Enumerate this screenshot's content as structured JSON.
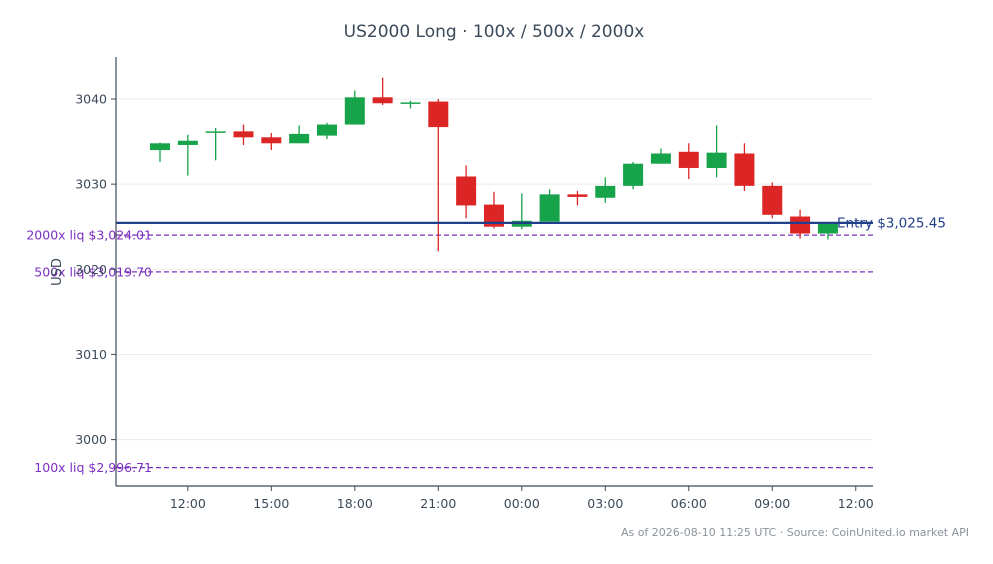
{
  "chart_data": {
    "type": "candlestick",
    "title": "US2000 Long · 100x / 500x / 2000x",
    "xlabel": "",
    "ylabel": "USD",
    "ylim": [
      2994.5,
      3045.5
    ],
    "x_ticks": [
      "12:00",
      "15:00",
      "18:00",
      "21:00",
      "00:00",
      "03:00",
      "06:00",
      "09:00",
      "12:00"
    ],
    "y_ticks": [
      3000,
      3010,
      3020,
      3030,
      3040
    ],
    "grid": true,
    "colors": {
      "up": "#17a34a",
      "down": "#dc2626",
      "entry": "#1f3f8a",
      "liq": "#7b2fbf",
      "axis": "#3b4a5a"
    },
    "candles": [
      {
        "time": "11:00",
        "open": 3034.0,
        "high": 3034.9,
        "low": 3032.6,
        "close": 3034.8
      },
      {
        "time": "12:00",
        "open": 3034.6,
        "high": 3035.8,
        "low": 3031.0,
        "close": 3035.1
      },
      {
        "time": "13:00",
        "open": 3036.1,
        "high": 3036.6,
        "low": 3032.8,
        "close": 3036.2
      },
      {
        "time": "14:00",
        "open": 3036.2,
        "high": 3037.0,
        "low": 3034.6,
        "close": 3035.5
      },
      {
        "time": "15:00",
        "open": 3035.5,
        "high": 3036.0,
        "low": 3034.0,
        "close": 3034.8
      },
      {
        "time": "16:00",
        "open": 3034.8,
        "high": 3036.9,
        "low": 3034.8,
        "close": 3035.9
      },
      {
        "time": "17:00",
        "open": 3035.7,
        "high": 3037.2,
        "low": 3035.3,
        "close": 3037.0
      },
      {
        "time": "18:00",
        "open": 3037.0,
        "high": 3041.0,
        "low": 3037.0,
        "close": 3040.2
      },
      {
        "time": "19:00",
        "open": 3040.2,
        "high": 3042.5,
        "low": 3039.3,
        "close": 3039.5
      },
      {
        "time": "20:00",
        "open": 3039.5,
        "high": 3039.8,
        "low": 3038.9,
        "close": 3039.6
      },
      {
        "time": "21:00",
        "open": 3039.7,
        "high": 3040.0,
        "low": 3022.1,
        "close": 3036.7
      },
      {
        "time": "22:00",
        "open": 3030.9,
        "high": 3032.2,
        "low": 3026.0,
        "close": 3027.5
      },
      {
        "time": "23:00",
        "open": 3027.6,
        "high": 3029.1,
        "low": 3024.8,
        "close": 3025.0
      },
      {
        "time": "00:00",
        "open": 3025.0,
        "high": 3028.9,
        "low": 3024.7,
        "close": 3025.7
      },
      {
        "time": "01:00",
        "open": 3025.6,
        "high": 3029.4,
        "low": 3025.6,
        "close": 3028.8
      },
      {
        "time": "02:00",
        "open": 3028.8,
        "high": 3029.2,
        "low": 3027.5,
        "close": 3028.5
      },
      {
        "time": "03:00",
        "open": 3028.4,
        "high": 3030.8,
        "low": 3027.8,
        "close": 3029.8
      },
      {
        "time": "04:00",
        "open": 3029.8,
        "high": 3032.6,
        "low": 3029.4,
        "close": 3032.4
      },
      {
        "time": "05:00",
        "open": 3032.4,
        "high": 3034.2,
        "low": 3032.4,
        "close": 3033.6
      },
      {
        "time": "06:00",
        "open": 3033.8,
        "high": 3034.8,
        "low": 3030.6,
        "close": 3031.9
      },
      {
        "time": "07:00",
        "open": 3031.9,
        "high": 3036.9,
        "low": 3030.8,
        "close": 3033.7
      },
      {
        "time": "08:00",
        "open": 3033.6,
        "high": 3034.8,
        "low": 3029.2,
        "close": 3029.8
      },
      {
        "time": "09:00",
        "open": 3029.8,
        "high": 3030.2,
        "low": 3026.0,
        "close": 3026.4
      },
      {
        "time": "10:00",
        "open": 3026.2,
        "high": 3027.0,
        "low": 3023.6,
        "close": 3024.2
      },
      {
        "time": "11:00",
        "open": 3024.2,
        "high": 3025.5,
        "low": 3023.5,
        "close": 3025.4
      }
    ],
    "entry": {
      "value": 3025.45,
      "label": "Entry $3,025.45"
    },
    "liquidation_levels": [
      {
        "value": 3024.01,
        "label": "2000x liq $3,024.01"
      },
      {
        "value": 3019.7,
        "label": "500x liq $3,019.70"
      },
      {
        "value": 2996.71,
        "label": "100x liq $2,996.71"
      }
    ]
  },
  "footer": "As of 2026-08-10 11:25 UTC · Source: CoinUnited.io market API"
}
